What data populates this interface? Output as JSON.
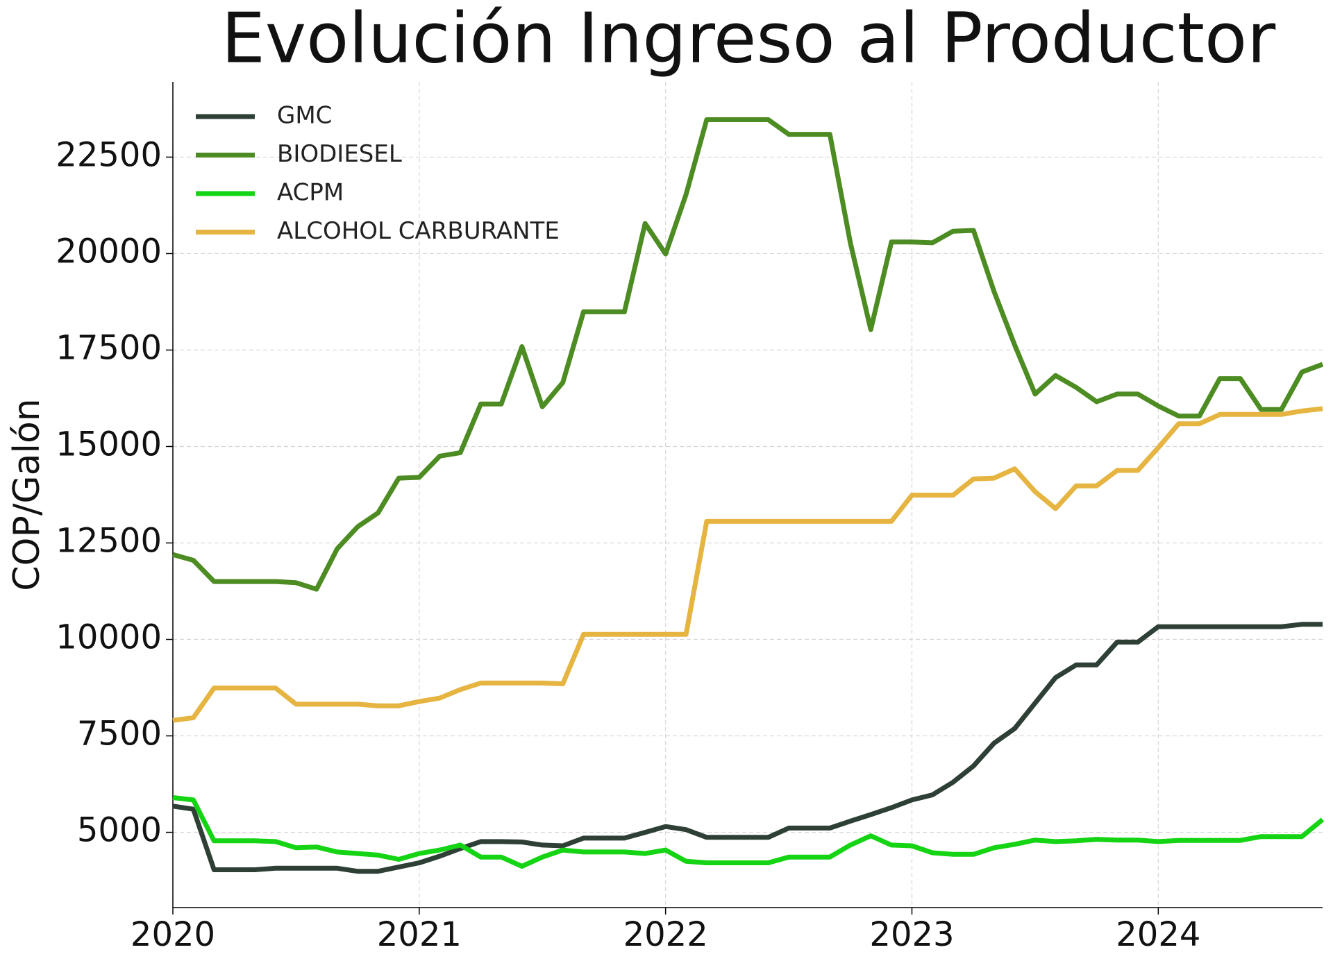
{
  "chart_data": {
    "type": "line",
    "title": "Evolución Ingreso al Productor",
    "y_label": "COP/Galón",
    "x": [
      2020,
      2020.083,
      2020.167,
      2020.25,
      2020.333,
      2020.417,
      2020.5,
      2020.583,
      2020.667,
      2020.75,
      2020.833,
      2020.917,
      2021,
      2021.083,
      2021.167,
      2021.25,
      2021.333,
      2021.417,
      2021.5,
      2021.583,
      2021.667,
      2021.75,
      2021.833,
      2021.917,
      2022,
      2022.083,
      2022.167,
      2022.25,
      2022.333,
      2022.417,
      2022.5,
      2022.583,
      2022.667,
      2022.75,
      2022.833,
      2022.917,
      2023,
      2023.083,
      2023.167,
      2023.25,
      2023.333,
      2023.417,
      2023.5,
      2023.583,
      2023.667,
      2023.75,
      2023.833,
      2023.917,
      2024,
      2024.083,
      2024.167,
      2024.25,
      2024.333,
      2024.417,
      2024.5,
      2024.583,
      2024.667
    ],
    "series": [
      {
        "name": "GMC",
        "color": "#2e4036",
        "values": [
          5680,
          5600,
          4030,
          4030,
          4030,
          4070,
          4070,
          4070,
          4070,
          3990,
          3990,
          4100,
          4210,
          4380,
          4580,
          4760,
          4760,
          4750,
          4670,
          4650,
          4850,
          4850,
          4850,
          5000,
          5150,
          5070,
          4870,
          4870,
          4870,
          4870,
          5110,
          5110,
          5110,
          5290,
          5460,
          5640,
          5840,
          5970,
          6300,
          6720,
          7310,
          7690,
          8350,
          9010,
          9340,
          9340,
          9930,
          9930,
          10330,
          10330,
          10330,
          10330,
          10330,
          10330,
          10330,
          10390,
          10390
        ]
      },
      {
        "name": "BIODIESEL",
        "color": "#4d8c22",
        "values": [
          12200,
          12050,
          11500,
          11500,
          11500,
          11500,
          11470,
          11300,
          12350,
          12920,
          13280,
          14180,
          14200,
          14750,
          14840,
          16100,
          16100,
          17590,
          16030,
          16660,
          18490,
          18490,
          18490,
          20780,
          19990,
          21530,
          23470,
          23470,
          23470,
          23470,
          23090,
          23090,
          23090,
          20280,
          18030,
          20300,
          20300,
          20280,
          20580,
          20600,
          19020,
          17630,
          16360,
          16840,
          16530,
          16160,
          16360,
          16360,
          16050,
          15790,
          15790,
          16760,
          16760,
          15960,
          15960,
          16930,
          17130
        ]
      },
      {
        "name": "ACPM",
        "color": "#14d414",
        "values": [
          5900,
          5840,
          4780,
          4780,
          4780,
          4760,
          4600,
          4620,
          4490,
          4450,
          4410,
          4300,
          4450,
          4540,
          4670,
          4360,
          4360,
          4120,
          4360,
          4540,
          4490,
          4490,
          4490,
          4450,
          4540,
          4250,
          4210,
          4210,
          4210,
          4210,
          4360,
          4360,
          4360,
          4670,
          4910,
          4670,
          4650,
          4470,
          4430,
          4430,
          4600,
          4690,
          4800,
          4760,
          4780,
          4820,
          4800,
          4800,
          4760,
          4790,
          4790,
          4790,
          4790,
          4890,
          4890,
          4890,
          5330
        ]
      },
      {
        "name": "ALCOHOL CARBURANTE",
        "color": "#e6b440",
        "values": [
          7900,
          7970,
          8740,
          8740,
          8740,
          8740,
          8320,
          8320,
          8320,
          8320,
          8280,
          8280,
          8390,
          8480,
          8700,
          8870,
          8870,
          8870,
          8870,
          8850,
          10130,
          10130,
          10130,
          10130,
          10130,
          10130,
          13060,
          13060,
          13060,
          13060,
          13060,
          13060,
          13060,
          13060,
          13060,
          13060,
          13740,
          13740,
          13740,
          14160,
          14180,
          14420,
          13830,
          13390,
          13980,
          13980,
          14380,
          14380,
          14970,
          15590,
          15590,
          15830,
          15830,
          15830,
          15830,
          15920,
          15980
        ]
      }
    ],
    "xlim": [
      2020,
      2024.667
    ],
    "xticks": [
      2020,
      2021,
      2022,
      2023,
      2024
    ],
    "ylim": [
      3050,
      24450
    ],
    "yticks": [
      5000,
      7500,
      10000,
      12500,
      15000,
      17500,
      20000,
      22500
    ],
    "grid": true,
    "legend": "upper left"
  }
}
